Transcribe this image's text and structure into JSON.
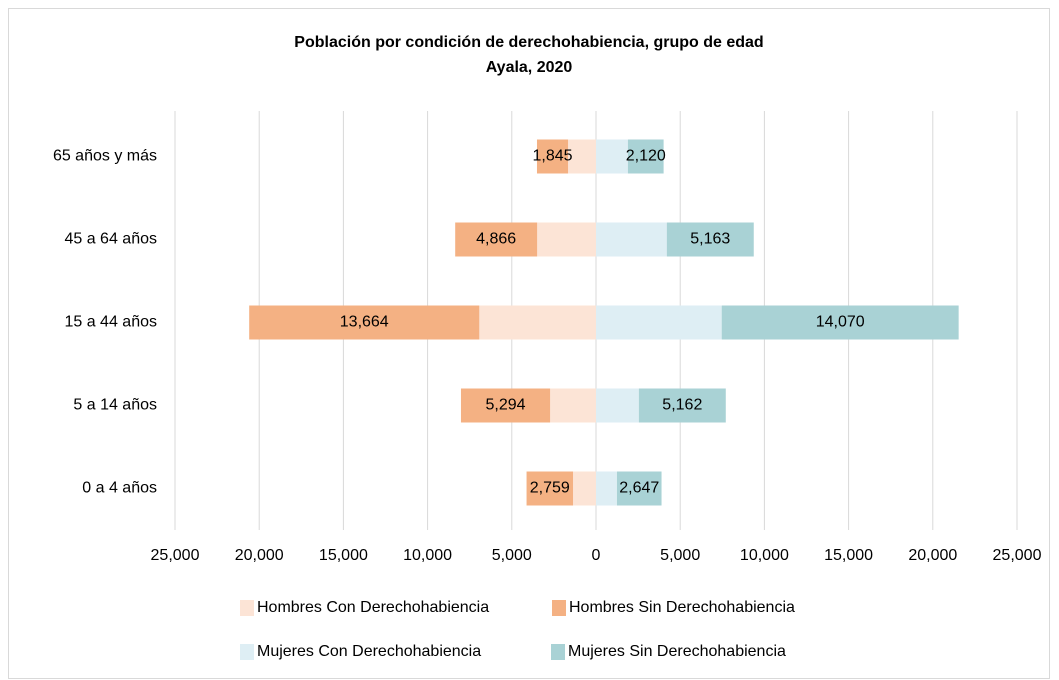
{
  "chart_data": {
    "type": "bar",
    "orientation": "horizontal",
    "stacked": true,
    "title": "Población por condición de derechohabiencia, grupo de edad",
    "subtitle": "Ayala, 2020",
    "categories": [
      "65 años y más",
      "45 a 64 años",
      "15 a 44 años",
      "5 a 14 años",
      "0 a 4 años"
    ],
    "series": [
      {
        "name": "Hombres Con Derechohabiencia",
        "color": "#fce4d6",
        "values": [
          -1660,
          -3495,
          -6930,
          -2725,
          -1365
        ]
      },
      {
        "name": "Hombres Sin Derechohabiencia",
        "color": "#f4b183",
        "values": [
          -1845,
          -4866,
          -13664,
          -5294,
          -2759
        ],
        "value_labels": [
          "1,845",
          "4,866",
          "13,664",
          "5,294",
          "2,759"
        ]
      },
      {
        "name": "Mujeres Con Derechohabiencia",
        "color": "#deeef4",
        "values": [
          1895,
          4205,
          7465,
          2545,
          1245
        ]
      },
      {
        "name": "Mujeres Sin Derechohabiencia",
        "color": "#a9d2d5",
        "values": [
          2120,
          5163,
          14070,
          5162,
          2647
        ],
        "value_labels": [
          "2,120",
          "5,163",
          "14,070",
          "5,162",
          "2,647"
        ]
      }
    ],
    "xlim": [
      -25000,
      25000
    ],
    "xticks": [
      {
        "value": -25000,
        "label": "25,000"
      },
      {
        "value": -20000,
        "label": "20,000"
      },
      {
        "value": -15000,
        "label": "15,000"
      },
      {
        "value": -10000,
        "label": "10,000"
      },
      {
        "value": -5000,
        "label": "5,000"
      },
      0,
      {
        "value": 5000,
        "label": "5,000"
      },
      {
        "value": 10000,
        "label": "10,000"
      },
      {
        "value": 15000,
        "label": "15,000"
      },
      {
        "value": 20000,
        "label": "20,000"
      },
      {
        "value": 25000,
        "label": "25,000"
      }
    ],
    "grid": true,
    "legend": "bottom"
  }
}
